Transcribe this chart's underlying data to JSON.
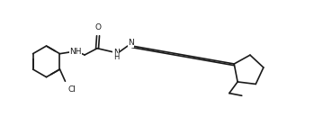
{
  "background_color": "#ffffff",
  "line_color": "#1a1a1a",
  "line_width": 1.2,
  "font_size": 6.5,
  "figure_size": [
    3.49,
    1.4
  ],
  "dpi": 100,
  "xlim": [
    0,
    10.5
  ],
  "ylim": [
    0,
    4.0
  ]
}
